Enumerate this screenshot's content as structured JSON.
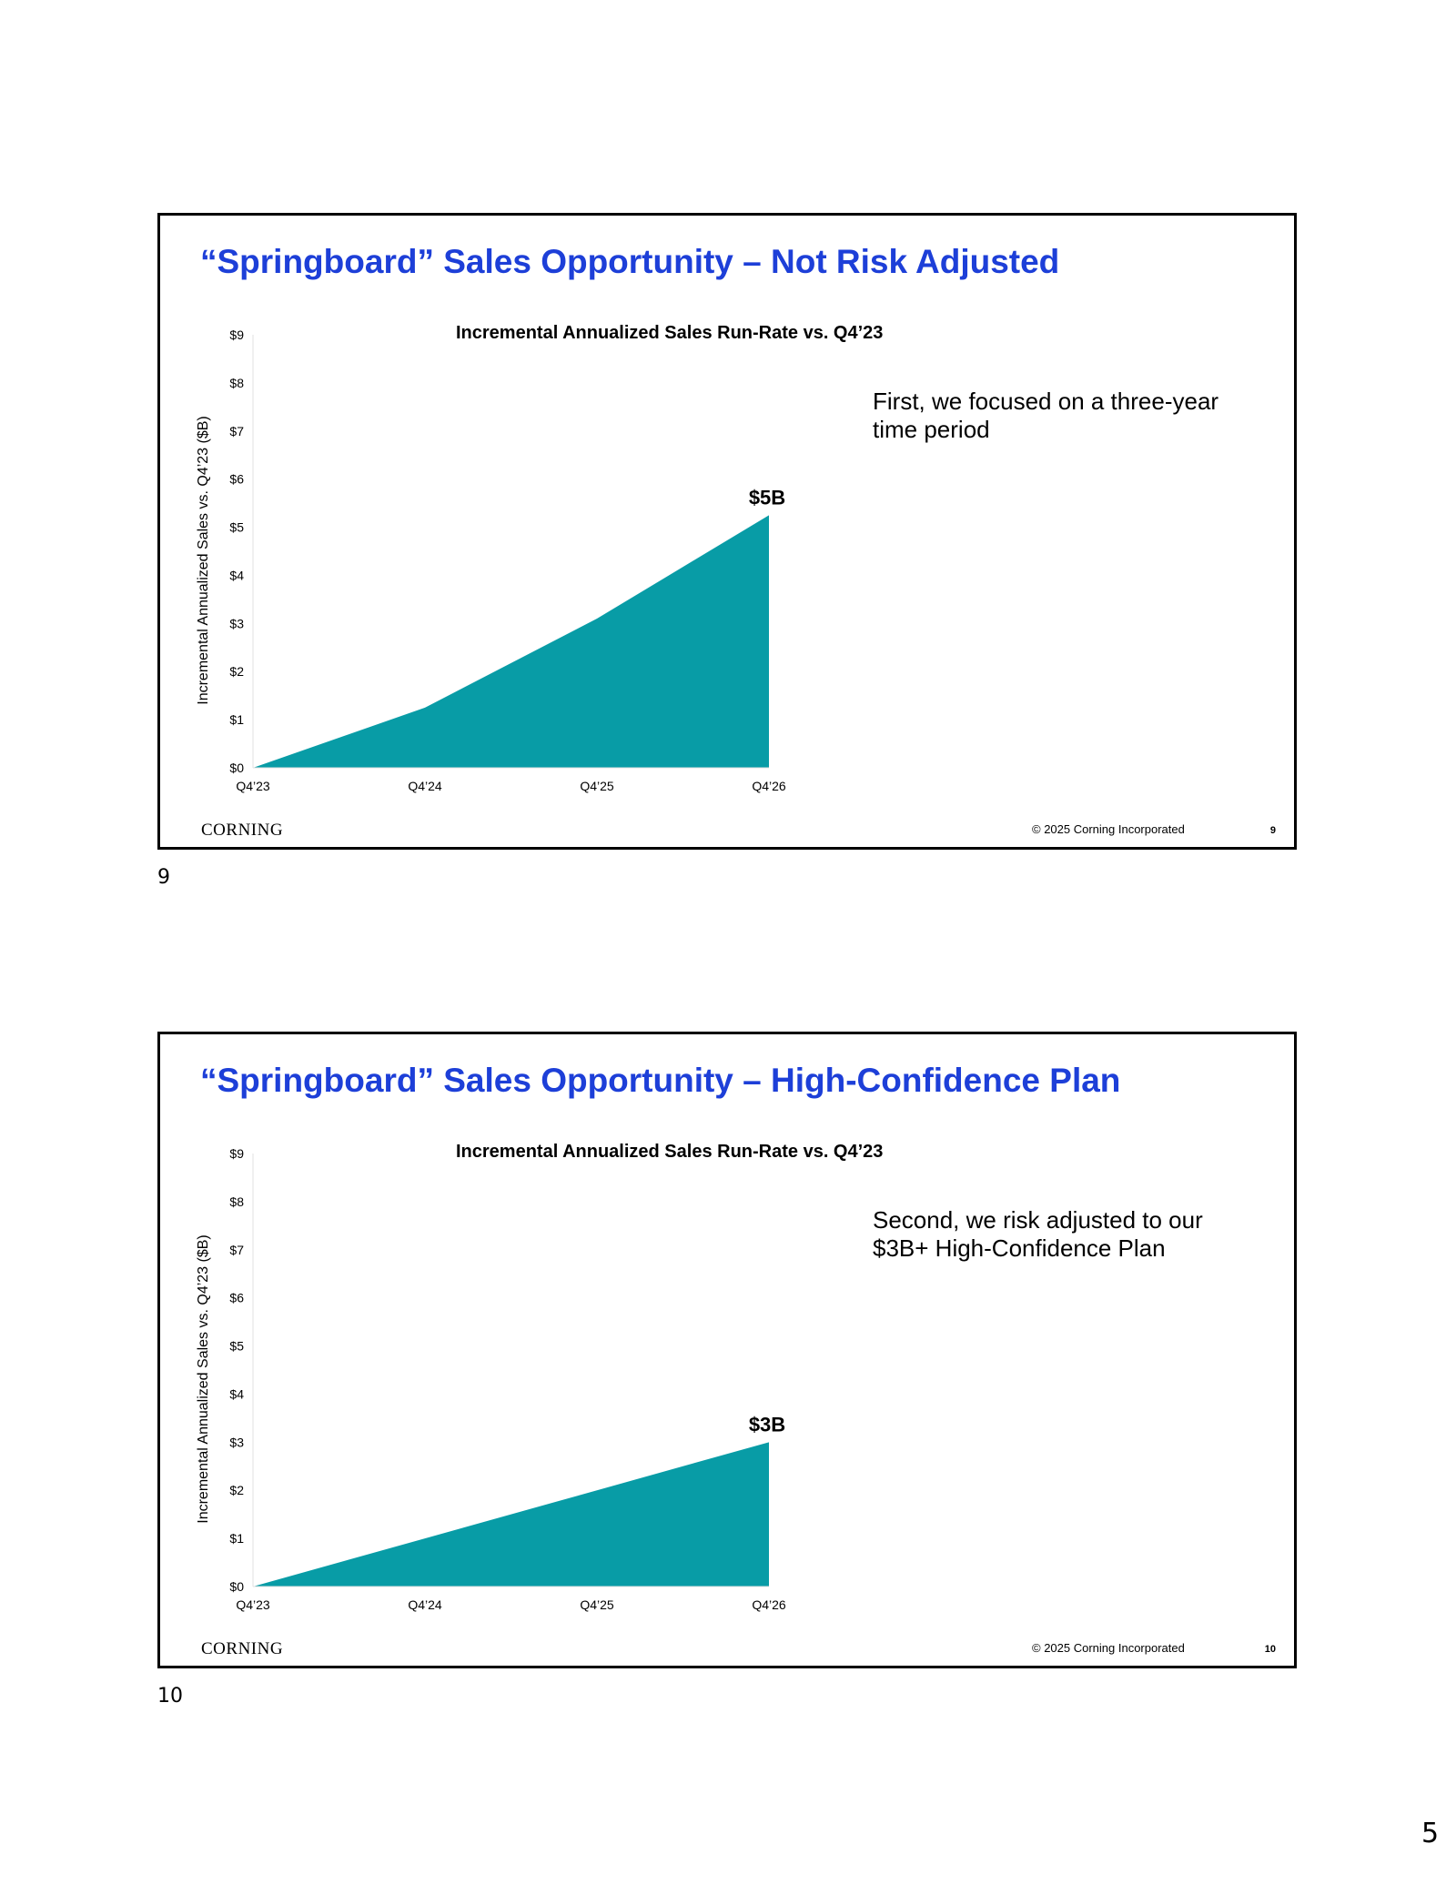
{
  "slides": [
    {
      "title": "“Springboard” Sales Opportunity – Not Risk Adjusted",
      "note": "First, we focused on a three-year time period",
      "logo": "CORNING",
      "copyright": "© 2025 Corning Incorporated",
      "slide_number": "9",
      "caption_number": "9"
    },
    {
      "title": "“Springboard” Sales Opportunity – High-Confidence Plan",
      "note": "Second, we risk adjusted to our $3B+ High-Confidence Plan",
      "logo": "CORNING",
      "copyright": "© 2025 Corning Incorporated",
      "slide_number": "10",
      "caption_number": "10"
    }
  ],
  "page_number": "5",
  "chart_data": [
    {
      "type": "area",
      "title": "Incremental Annualized Sales Run-Rate vs. Q4’23",
      "xlabel": "",
      "ylabel": "Incremental Annualized Sales vs. Q4’23 ($B)",
      "categories": [
        "Q4’23",
        "Q4’24",
        "Q4’25",
        "Q4’26"
      ],
      "values": [
        0,
        1.25,
        3.1,
        5.25
      ],
      "ylim": [
        0,
        9
      ],
      "yticks": [
        "$0",
        "$1",
        "$2",
        "$3",
        "$4",
        "$5",
        "$6",
        "$7",
        "$8",
        "$9"
      ],
      "annotation": "$5B",
      "color": "#089ca6",
      "grid": false
    },
    {
      "type": "area",
      "title": "Incremental Annualized Sales Run-Rate vs. Q4’23",
      "xlabel": "",
      "ylabel": "Incremental Annualized Sales vs. Q4’23 ($B)",
      "categories": [
        "Q4’23",
        "Q4’24",
        "Q4’25",
        "Q4’26"
      ],
      "values": [
        0,
        1,
        2,
        3
      ],
      "ylim": [
        0,
        9
      ],
      "yticks": [
        "$0",
        "$1",
        "$2",
        "$3",
        "$4",
        "$5",
        "$6",
        "$7",
        "$8",
        "$9"
      ],
      "annotation": "$3B",
      "color": "#089ca6",
      "grid": false
    }
  ]
}
